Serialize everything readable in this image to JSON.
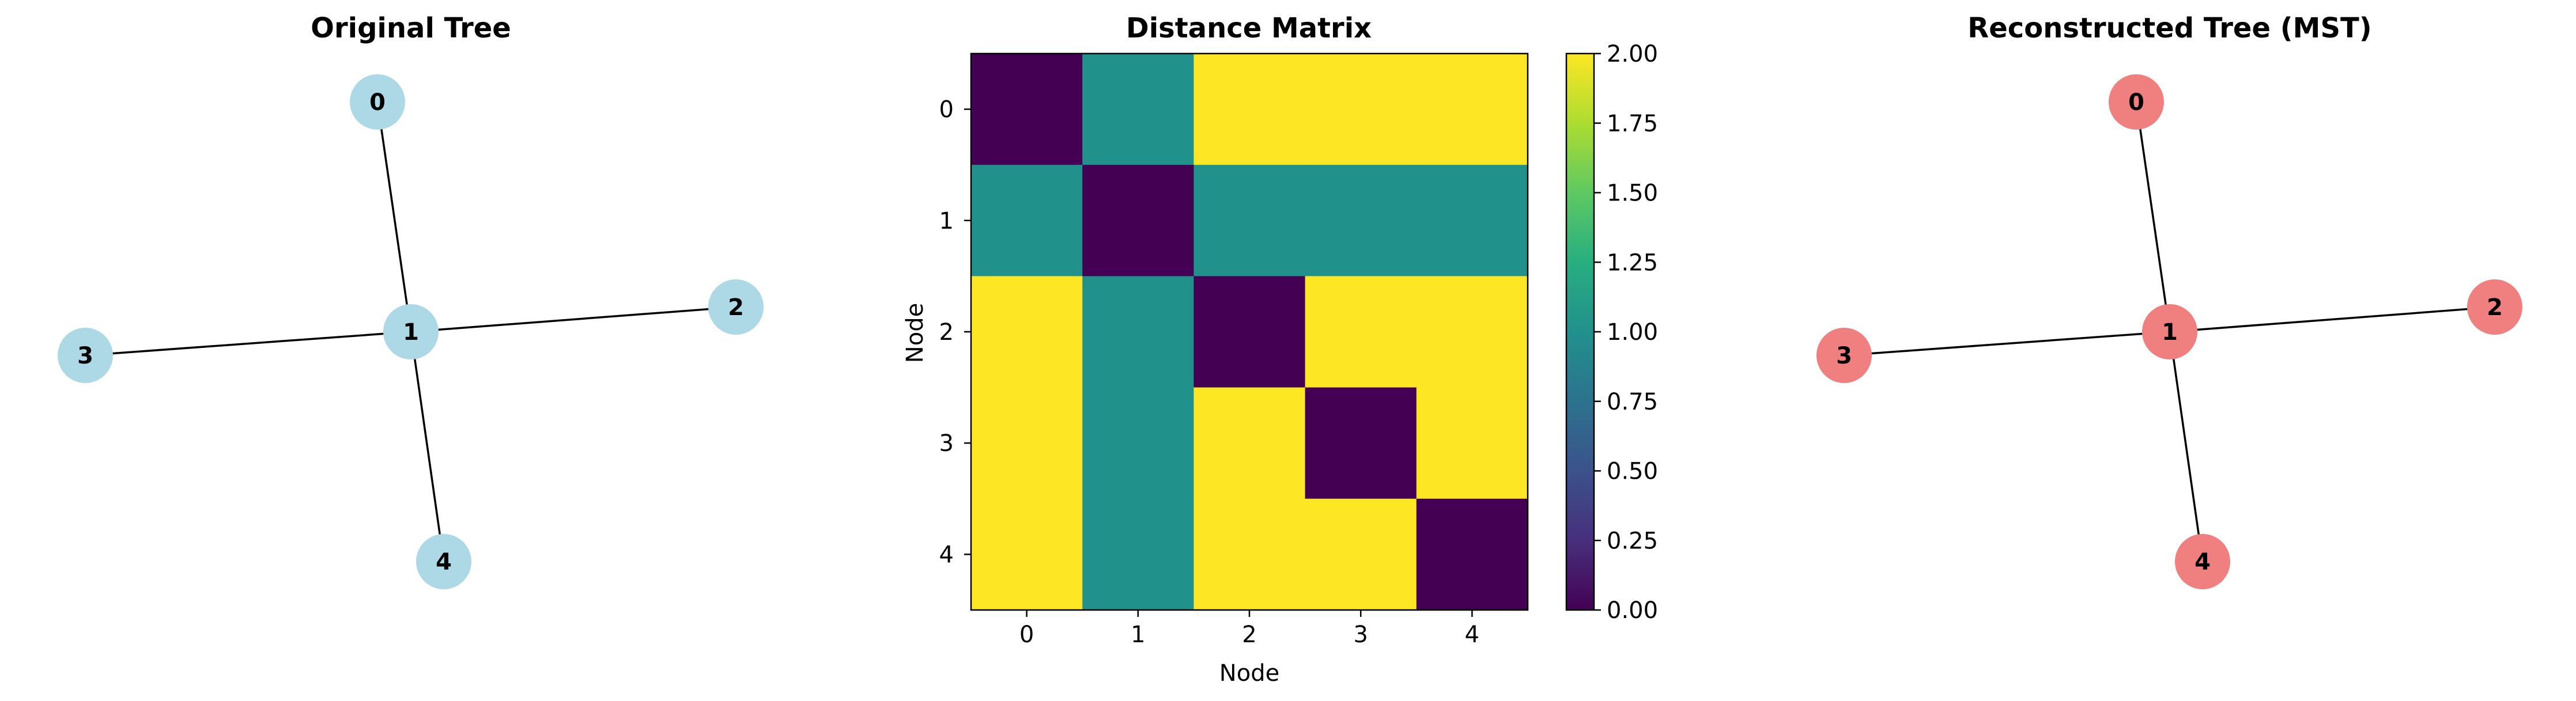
{
  "figure": {
    "background": "#ffffff"
  },
  "chart_data": [
    {
      "type": "network",
      "title": "Original Tree",
      "node_color": "#add8e6",
      "edge_color": "#000000",
      "nodes": [
        {
          "id": "0",
          "label": "0"
        },
        {
          "id": "1",
          "label": "1"
        },
        {
          "id": "2",
          "label": "2"
        },
        {
          "id": "3",
          "label": "3"
        },
        {
          "id": "4",
          "label": "4"
        }
      ],
      "edges": [
        [
          "0",
          "1"
        ],
        [
          "1",
          "2"
        ],
        [
          "1",
          "3"
        ],
        [
          "1",
          "4"
        ]
      ]
    },
    {
      "type": "heatmap",
      "title": "Distance Matrix",
      "xlabel": "Node",
      "ylabel": "Node",
      "x_ticks": [
        "0",
        "1",
        "2",
        "3",
        "4"
      ],
      "y_ticks": [
        "0",
        "1",
        "2",
        "3",
        "4"
      ],
      "matrix": [
        [
          0,
          1,
          2,
          2,
          2
        ],
        [
          1,
          0,
          1,
          1,
          1
        ],
        [
          2,
          1,
          0,
          2,
          2
        ],
        [
          2,
          1,
          2,
          0,
          2
        ],
        [
          2,
          1,
          2,
          2,
          0
        ]
      ],
      "colormap": "viridis",
      "vmin": 0,
      "vmax": 2,
      "colorbar_ticks": [
        "0.00",
        "0.25",
        "0.50",
        "0.75",
        "1.00",
        "1.25",
        "1.50",
        "1.75",
        "2.00"
      ]
    },
    {
      "type": "network",
      "title": "Reconstructed Tree (MST)",
      "node_color": "#f08080",
      "edge_color": "#000000",
      "nodes": [
        {
          "id": "0",
          "label": "0"
        },
        {
          "id": "1",
          "label": "1"
        },
        {
          "id": "2",
          "label": "2"
        },
        {
          "id": "3",
          "label": "3"
        },
        {
          "id": "4",
          "label": "4"
        }
      ],
      "edges": [
        [
          "0",
          "1"
        ],
        [
          "1",
          "2"
        ],
        [
          "1",
          "3"
        ],
        [
          "1",
          "4"
        ]
      ]
    }
  ]
}
